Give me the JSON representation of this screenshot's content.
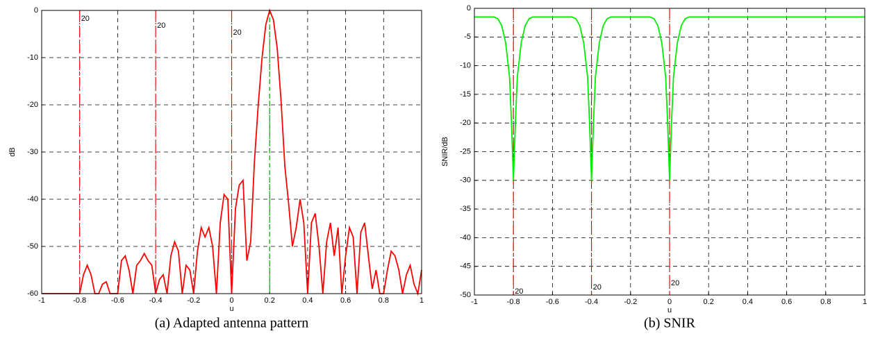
{
  "chart_data": [
    {
      "type": "line",
      "xlabel": "u",
      "ylabel": "dB",
      "caption": "(a) Adapted antenna pattern",
      "xlim": [
        -1,
        1
      ],
      "xticks": [
        -1,
        -0.8,
        -0.6,
        -0.4,
        -0.2,
        0,
        0.2,
        0.4,
        0.6,
        0.8,
        1
      ],
      "ylim": [
        -60,
        0
      ],
      "yticks": [
        0,
        -10,
        -20,
        -30,
        -40,
        -50,
        -60
      ],
      "grid": true,
      "color": "#ff0000",
      "interference_u": [
        -0.8,
        -0.4,
        0
      ],
      "interference_color": "#ff0000",
      "look_u": 0.2,
      "look_color": "#00c000",
      "annotations": [
        {
          "text": "20",
          "x": -0.8
        },
        {
          "text": "20",
          "x": -0.4
        },
        {
          "text": "20",
          "x": 0
        }
      ],
      "annotation_color": "#000000",
      "x": [
        -1,
        -0.82,
        -0.8,
        -0.78,
        -0.76,
        -0.74,
        -0.72,
        -0.7,
        -0.68,
        -0.66,
        -0.64,
        -0.6,
        -0.58,
        -0.56,
        -0.54,
        -0.52,
        -0.5,
        -0.48,
        -0.46,
        -0.44,
        -0.42,
        -0.4,
        -0.38,
        -0.36,
        -0.34,
        -0.32,
        -0.3,
        -0.28,
        -0.26,
        -0.24,
        -0.22,
        -0.2,
        -0.18,
        -0.16,
        -0.14,
        -0.12,
        -0.1,
        -0.08,
        -0.06,
        -0.04,
        -0.02,
        0,
        0.02,
        0.04,
        0.06,
        0.08,
        0.1,
        0.12,
        0.14,
        0.16,
        0.18,
        0.2,
        0.22,
        0.24,
        0.26,
        0.28,
        0.3,
        0.32,
        0.34,
        0.36,
        0.38,
        0.4,
        0.42,
        0.44,
        0.46,
        0.48,
        0.5,
        0.52,
        0.54,
        0.56,
        0.58,
        0.6,
        0.62,
        0.64,
        0.66,
        0.68,
        0.7,
        0.72,
        0.74,
        0.76,
        0.78,
        0.8,
        0.82,
        0.84,
        0.86,
        0.88,
        0.9,
        0.92,
        0.94,
        0.96,
        0.98,
        1
      ],
      "values": [
        -60,
        -60,
        -60,
        -56,
        -54,
        -56,
        -60,
        -60,
        -58,
        -57.5,
        -60,
        -60,
        -53,
        -52,
        -55,
        -60,
        -54,
        -53,
        -51.5,
        -53,
        -54,
        -60,
        -57,
        -56,
        -60,
        -52,
        -49,
        -51,
        -60,
        -54,
        -55,
        -60,
        -51,
        -46,
        -48,
        -46,
        -50,
        -60,
        -45,
        -39,
        -40,
        -60,
        -42,
        -37,
        -36,
        -53,
        -49,
        -32,
        -20,
        -10,
        -3,
        0,
        -2,
        -8,
        -19,
        -33,
        -41,
        -50,
        -46,
        -40,
        -45,
        -60,
        -45,
        -43,
        -50,
        -60,
        -49,
        -45,
        -52,
        -46,
        -60,
        -52,
        -46,
        -48,
        -60,
        -47,
        -45,
        -52,
        -59,
        -55,
        -60,
        -60,
        -55,
        -51,
        -52,
        -55,
        -60,
        -56,
        -54,
        -58,
        -60,
        -55
      ]
    },
    {
      "type": "line",
      "xlabel": "u",
      "ylabel": "SNIR/dB",
      "caption": "(b) SNIR",
      "xlim": [
        -1,
        1
      ],
      "xticks": [
        -1,
        -0.8,
        -0.6,
        -0.4,
        -0.2,
        0,
        0.2,
        0.4,
        0.6,
        0.8,
        1
      ],
      "ylim": [
        -50,
        0
      ],
      "yticks": [
        0,
        -5,
        -10,
        -15,
        -20,
        -25,
        -30,
        -35,
        -40,
        -45,
        -50
      ],
      "grid": true,
      "color": "#00ee00",
      "interference_u": [
        -0.8,
        -0.4,
        0
      ],
      "interference_color": "#ff0000",
      "annotations": [
        {
          "text": "20",
          "x": -0.8
        },
        {
          "text": "20",
          "x": -0.4
        },
        {
          "text": "20",
          "x": 0
        }
      ],
      "annotation_color": "#ff0000",
      "x": [
        -1,
        -0.9,
        -0.88,
        -0.86,
        -0.84,
        -0.82,
        -0.81,
        -0.8,
        -0.79,
        -0.78,
        -0.76,
        -0.74,
        -0.72,
        -0.7,
        -0.5,
        -0.48,
        -0.46,
        -0.44,
        -0.42,
        -0.41,
        -0.4,
        -0.39,
        -0.38,
        -0.36,
        -0.34,
        -0.32,
        -0.3,
        -0.1,
        -0.08,
        -0.06,
        -0.04,
        -0.02,
        -0.01,
        0,
        0.01,
        0.02,
        0.04,
        0.06,
        0.08,
        0.1,
        1
      ],
      "values": [
        -1.5,
        -1.5,
        -1.8,
        -3,
        -6,
        -12,
        -20,
        -30,
        -20,
        -12,
        -6,
        -3,
        -1.8,
        -1.5,
        -1.5,
        -1.8,
        -3,
        -6,
        -12,
        -20,
        -30,
        -20,
        -12,
        -6,
        -3,
        -1.8,
        -1.5,
        -1.5,
        -1.8,
        -3,
        -6,
        -12,
        -20,
        -30,
        -20,
        -12,
        -6,
        -3,
        -1.8,
        -1.5,
        -1.5
      ]
    }
  ]
}
